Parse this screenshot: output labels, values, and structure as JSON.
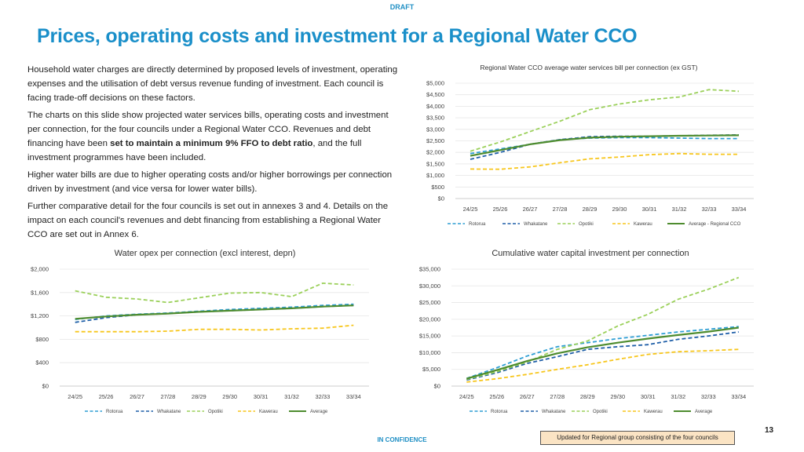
{
  "header": {
    "draft_label": "DRAFT",
    "title": "Prices, operating costs and investment for a Regional Water CCO"
  },
  "body": {
    "p1": "Household water charges are directly determined by proposed levels of investment, operating expenses and the utilisation of debt versus revenue funding of investment. Each council is facing trade-off decisions on these factors.",
    "p2_a": "The charts on this slide show projected water services bills, operating costs and investment per connection, for the four councils under a Regional Water CCO. Revenues and debt financing have been ",
    "p2_bold": "set to maintain a minimum 9% FFO to debt ratio",
    "p2_b": ", and the full investment programmes have been included.",
    "p3": "Higher water bills are due to higher operating costs and/or higher borrowings per connection driven by investment (and vice versa for lower water bills).",
    "p4": "Further comparative detail for the four councils is set out in annexes 3 and 4. Details on the impact on each council's revenues and debt financing from establishing a Regional Water CCO are set out in Annex 6."
  },
  "footer": {
    "confidentiality": "IN CONFIDENCE",
    "page_number": "13",
    "note": "Updated for Regional group consisting of the four councils"
  },
  "colors": {
    "title": "#1a8fc9",
    "Rotorua": "#2e9ed4",
    "Whakatane": "#1f5fa8",
    "Opotiki": "#9bd05a",
    "Kawerau": "#f7c61c",
    "Average": "#4e8c2f"
  },
  "chart_data": [
    {
      "id": "bill",
      "type": "line",
      "title": "Regional Water CCO average water services bill per connection (ex GST)",
      "categories": [
        "24/25",
        "25/26",
        "26/27",
        "27/28",
        "28/29",
        "29/30",
        "30/31",
        "31/32",
        "32/33",
        "33/34"
      ],
      "ylim": [
        0,
        5000
      ],
      "yticks": [
        0,
        500,
        1000,
        1500,
        2000,
        2500,
        3000,
        3500,
        4000,
        4500,
        5000
      ],
      "ytick_labels": [
        "$0",
        "$500",
        "$1,000",
        "$1,500",
        "$2,000",
        "$2,500",
        "$3,000",
        "$3,500",
        "$4,000",
        "$4,500",
        "$5,000"
      ],
      "series": [
        {
          "name": "Rotorua",
          "style": "dash",
          "values": [
            1950,
            2150,
            2350,
            2550,
            2620,
            2640,
            2640,
            2620,
            2600,
            2600
          ]
        },
        {
          "name": "Whakatane",
          "style": "dash",
          "values": [
            1700,
            2000,
            2350,
            2550,
            2680,
            2700,
            2700,
            2720,
            2740,
            2760
          ]
        },
        {
          "name": "Opotiki",
          "style": "dash",
          "values": [
            2050,
            2450,
            2900,
            3350,
            3850,
            4100,
            4280,
            4400,
            4720,
            4650
          ]
        },
        {
          "name": "Kawerau",
          "style": "dash",
          "values": [
            1280,
            1270,
            1370,
            1550,
            1720,
            1800,
            1900,
            1950,
            1920,
            1920
          ]
        },
        {
          "name": "Average - Regional CCO",
          "style": "solid",
          "values": [
            1850,
            2100,
            2350,
            2530,
            2640,
            2680,
            2700,
            2720,
            2730,
            2740
          ]
        }
      ]
    },
    {
      "id": "opex",
      "type": "line",
      "title": "Water opex per connection (excl interest, depn)",
      "categories": [
        "24/25",
        "25/26",
        "26/27",
        "27/28",
        "28/29",
        "29/30",
        "30/31",
        "31/32",
        "32/33",
        "33/34"
      ],
      "ylim": [
        0,
        2000
      ],
      "yticks": [
        0,
        400,
        800,
        1200,
        1600,
        2000
      ],
      "ytick_labels": [
        "$0",
        "$400",
        "$800",
        "$1,200",
        "$1,600",
        "$2,000"
      ],
      "series": [
        {
          "name": "Rotorua",
          "style": "dash",
          "values": [
            1140,
            1200,
            1230,
            1250,
            1280,
            1310,
            1330,
            1350,
            1380,
            1400
          ]
        },
        {
          "name": "Whakatane",
          "style": "dash",
          "values": [
            1090,
            1170,
            1220,
            1240,
            1270,
            1290,
            1310,
            1330,
            1360,
            1380
          ]
        },
        {
          "name": "Opotiki",
          "style": "dash",
          "values": [
            1630,
            1520,
            1490,
            1430,
            1510,
            1590,
            1600,
            1530,
            1760,
            1730
          ]
        },
        {
          "name": "Kawerau",
          "style": "dash",
          "values": [
            930,
            930,
            930,
            940,
            970,
            970,
            960,
            980,
            990,
            1040
          ]
        },
        {
          "name": "Average",
          "style": "solid",
          "values": [
            1150,
            1190,
            1220,
            1240,
            1270,
            1290,
            1310,
            1330,
            1360,
            1380
          ]
        }
      ]
    },
    {
      "id": "capex",
      "type": "line",
      "title": "Cumulative water capital investment per connection",
      "categories": [
        "24/25",
        "25/26",
        "26/27",
        "27/28",
        "28/29",
        "29/30",
        "30/31",
        "31/32",
        "32/33",
        "33/34"
      ],
      "ylim": [
        0,
        35000
      ],
      "yticks": [
        0,
        5000,
        10000,
        15000,
        20000,
        25000,
        30000,
        35000
      ],
      "ytick_labels": [
        "$0",
        "$5,000",
        "$10,000",
        "$15,000",
        "$20,000",
        "$25,000",
        "$30,000",
        "$35,000"
      ],
      "series": [
        {
          "name": "Rotorua",
          "style": "dash",
          "values": [
            2300,
            5500,
            9000,
            11800,
            13000,
            14200,
            15200,
            16200,
            17000,
            17800
          ]
        },
        {
          "name": "Whakatane",
          "style": "dash",
          "values": [
            1800,
            4000,
            6800,
            8800,
            11000,
            11800,
            12400,
            14000,
            15000,
            16200
          ]
        },
        {
          "name": "Opotiki",
          "style": "dash",
          "values": [
            2000,
            4300,
            7200,
            11000,
            13500,
            18000,
            21500,
            26000,
            29000,
            32500
          ]
        },
        {
          "name": "Kawerau",
          "style": "dash",
          "values": [
            1200,
            2200,
            3500,
            5000,
            6400,
            8000,
            9500,
            10300,
            10600,
            11000
          ]
        },
        {
          "name": "Average",
          "style": "solid",
          "values": [
            2200,
            4800,
            7500,
            9800,
            11600,
            13000,
            14200,
            15300,
            16300,
            17500
          ]
        }
      ]
    }
  ]
}
